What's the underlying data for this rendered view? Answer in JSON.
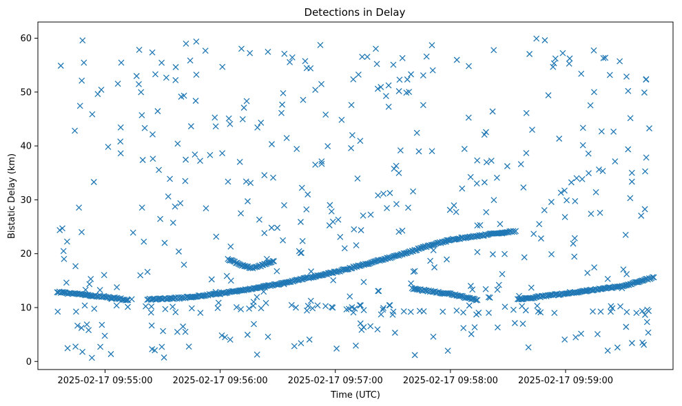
{
  "chart_data": {
    "type": "scatter",
    "title": "Detections in Delay",
    "xlabel": "Time (UTC)",
    "ylabel": "Bistatic Delay (km)",
    "x_start": "2025-02-17 09:54:35",
    "x_end": "2025-02-17 09:59:46",
    "xlim": [
      "2025-02-17 09:54:25",
      "2025-02-17 09:59:56"
    ],
    "ylim": [
      -1.5,
      63
    ],
    "x_ticks": [
      "2025-02-17 09:55:00",
      "2025-02-17 09:56:00",
      "2025-02-17 09:57:00",
      "2025-02-17 09:58:00",
      "2025-02-17 09:59:00"
    ],
    "y_ticks": [
      0,
      10,
      20,
      30,
      40,
      50,
      60
    ],
    "marker": "x",
    "color": "#1f77b4",
    "grid": false,
    "legend": "none",
    "tracks": [
      {
        "x": [
          "2025-02-17 09:54:35",
          "2025-02-17 09:54:45",
          "2025-02-17 09:55:00",
          "2025-02-17 09:55:12"
        ],
        "y": [
          12.9,
          12.5,
          12.0,
          11.4
        ]
      },
      {
        "x": [
          "2025-02-17 09:55:22",
          "2025-02-17 09:55:40",
          "2025-02-17 09:56:00",
          "2025-02-17 09:56:30",
          "2025-02-17 09:57:00",
          "2025-02-17 09:57:30",
          "2025-02-17 09:57:50",
          "2025-02-17 09:58:00",
          "2025-02-17 09:58:20",
          "2025-02-17 09:58:34"
        ],
        "y": [
          11.5,
          11.8,
          12.6,
          14.3,
          16.6,
          19.4,
          21.6,
          22.6,
          23.6,
          24.2
        ]
      },
      {
        "x": [
          "2025-02-17 09:56:04",
          "2025-02-17 09:56:10",
          "2025-02-17 09:56:17"
        ],
        "y": [
          19.0,
          18.0,
          17.3
        ]
      },
      {
        "x": [
          "2025-02-17 09:56:18",
          "2025-02-17 09:56:23",
          "2025-02-17 09:56:28"
        ],
        "y": [
          17.4,
          18.0,
          18.6
        ]
      },
      {
        "x": [
          "2025-02-17 09:57:40",
          "2025-02-17 09:57:50",
          "2025-02-17 09:58:00",
          "2025-02-17 09:58:14"
        ],
        "y": [
          13.5,
          13.0,
          12.5,
          11.4
        ]
      },
      {
        "x": [
          "2025-02-17 09:58:35",
          "2025-02-17 09:59:00",
          "2025-02-17 09:59:30",
          "2025-02-17 09:59:46"
        ],
        "y": [
          11.5,
          12.6,
          14.0,
          15.6
        ]
      }
    ],
    "clutter_count": 420,
    "low_band": {
      "y_min": 9,
      "y_max": 10.5
    }
  }
}
